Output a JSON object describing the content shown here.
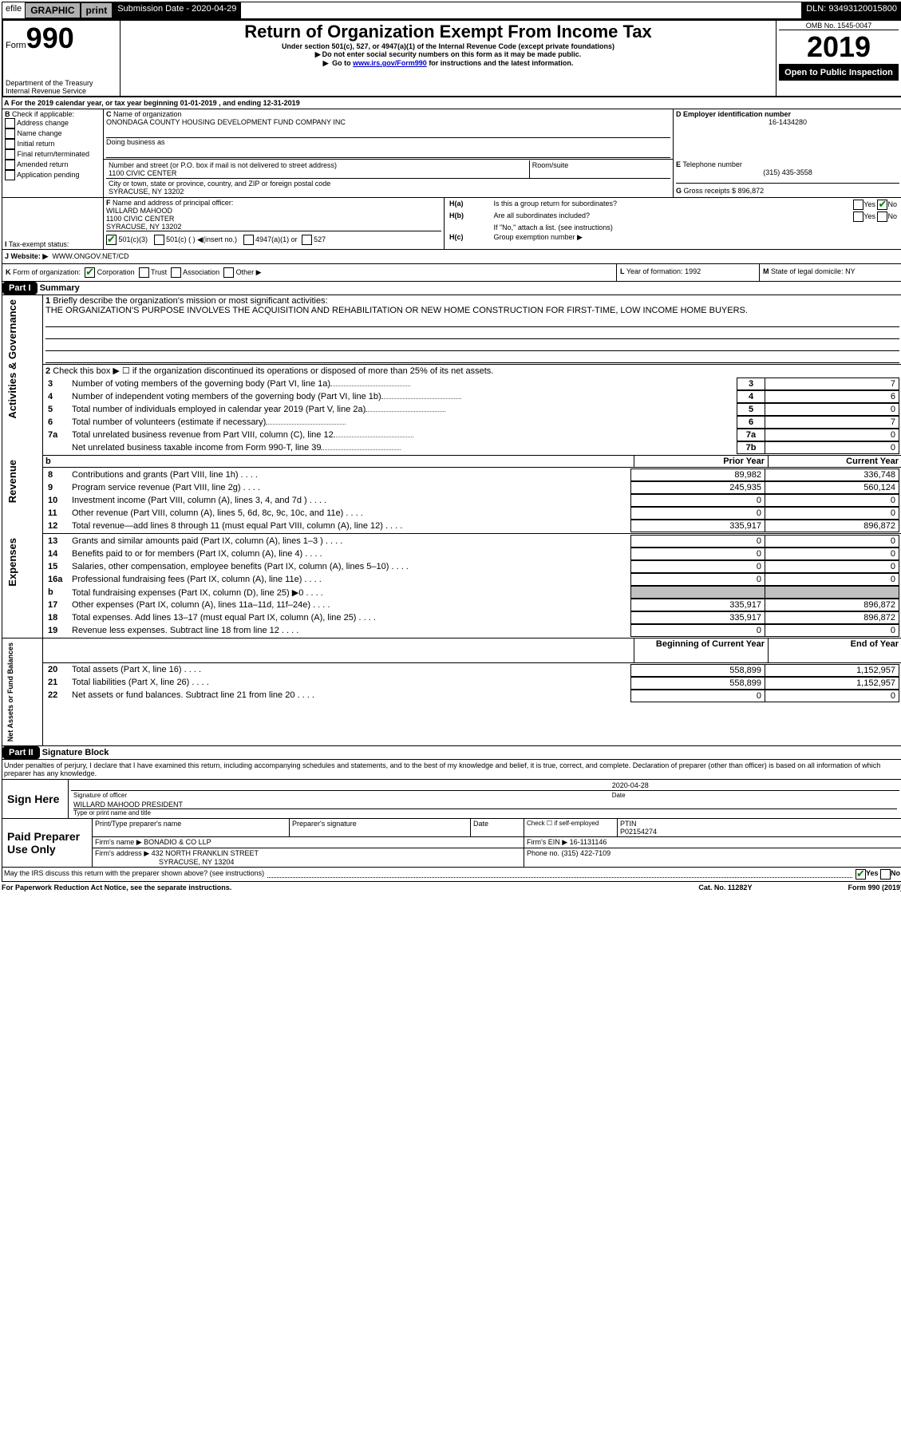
{
  "efile": {
    "prefix": "efile",
    "graphic": "GRAPHIC",
    "print": "print",
    "subdate_label": "Submission Date - ",
    "subdate": "2020-04-29",
    "dln_label": "DLN: ",
    "dln": "93493120015800"
  },
  "header": {
    "form_word": "Form",
    "form_num": "990",
    "title": "Return of Organization Exempt From Income Tax",
    "subtitle": "Under section 501(c), 527, or 4947(a)(1) of the Internal Revenue Code (except private foundations)",
    "warn1": "Do not enter social security numbers on this form as it may be made public.",
    "warn2_pre": "Go to ",
    "warn2_link": "www.irs.gov/Form990",
    "warn2_post": " for instructions and the latest information.",
    "omb_label": "OMB No. 1545-0047",
    "year": "2019",
    "open": "Open to Public Inspection",
    "dept1": "Department of the Treasury",
    "dept2": "Internal Revenue Service"
  },
  "A": {
    "text": "For the 2019 calendar year, or tax year beginning ",
    "begin": "01-01-2019",
    "mid": " , and ending ",
    "end": "12-31-2019"
  },
  "B": {
    "label": "Check if applicable:",
    "opts": [
      "Address change",
      "Name change",
      "Initial return",
      "Final return/terminated",
      "Amended return",
      "Application pending"
    ]
  },
  "C": {
    "name_label": "Name of organization",
    "name": "ONONDAGA COUNTY HOUSING DEVELOPMENT FUND COMPANY INC",
    "dba_label": "Doing business as",
    "addr_label": "Number and street (or P.O. box if mail is not delivered to street address)",
    "addr": "1100 CIVIC CENTER",
    "room_label": "Room/suite",
    "city_label": "City or town, state or province, country, and ZIP or foreign postal code",
    "city": "SYRACUSE, NY  13202"
  },
  "D": {
    "label": "Employer identification number",
    "val": "16-1434280"
  },
  "E": {
    "label": "Telephone number",
    "val": "(315) 435-3558"
  },
  "G": {
    "label": "Gross receipts $ ",
    "val": "896,872"
  },
  "F": {
    "label": "Name and address of principal officer:",
    "line1": "WILLARD MAHOOD",
    "line2": "1100 CIVIC CENTER",
    "line3": "SYRACUSE, NY  13202"
  },
  "H": {
    "a": "Is this a group return for subordinates?",
    "b": "Are all subordinates included?",
    "bnote": "If \"No,\" attach a list. (see instructions)",
    "c": "Group exemption number ▶",
    "yes": "Yes",
    "no": "No"
  },
  "I": {
    "label": "Tax-exempt status:",
    "o1": "501(c)(3)",
    "o2": "501(c) (   ) ◀(insert no.)",
    "o3": "4947(a)(1) or",
    "o4": "527"
  },
  "J": {
    "label": "Website: ▶",
    "val": "WWW.ONGOV.NET/CD"
  },
  "K": {
    "label": "Form of organization:",
    "opts": [
      "Corporation",
      "Trust",
      "Association",
      "Other ▶"
    ]
  },
  "L": {
    "label": "Year of formation: ",
    "val": "1992"
  },
  "M": {
    "label": "State of legal domicile: ",
    "val": "NY"
  },
  "partI": {
    "num": "Part I",
    "title": "Summary",
    "q1": "Briefly describe the organization's mission or most significant activities:",
    "mission": "THE ORGANIZATION'S PURPOSE INVOLVES THE ACQUISITION AND REHABILITATION OR NEW HOME CONSTRUCTION FOR FIRST-TIME, LOW INCOME HOME BUYERS.",
    "q2": "Check this box ▶ ☐  if the organization discontinued its operations or disposed of more than 25% of its net assets.",
    "rows_gov": [
      {
        "n": "3",
        "t": "Number of voting members of the governing body (Part VI, line 1a)",
        "box": "3",
        "v": "7"
      },
      {
        "n": "4",
        "t": "Number of independent voting members of the governing body (Part VI, line 1b)",
        "box": "4",
        "v": "6"
      },
      {
        "n": "5",
        "t": "Total number of individuals employed in calendar year 2019 (Part V, line 2a)",
        "box": "5",
        "v": "0"
      },
      {
        "n": "6",
        "t": "Total number of volunteers (estimate if necessary)",
        "box": "6",
        "v": "7"
      },
      {
        "n": "7a",
        "t": "Total unrelated business revenue from Part VIII, column (C), line 12",
        "box": "7a",
        "v": "0"
      },
      {
        "n": "",
        "t": "Net unrelated business taxable income from Form 990-T, line 39",
        "box": "7b",
        "v": "0"
      }
    ],
    "col_prior": "Prior Year",
    "col_curr": "Current Year",
    "rows_rev": [
      {
        "n": "8",
        "t": "Contributions and grants (Part VIII, line 1h)",
        "p": "89,982",
        "c": "336,748"
      },
      {
        "n": "9",
        "t": "Program service revenue (Part VIII, line 2g)",
        "p": "245,935",
        "c": "560,124"
      },
      {
        "n": "10",
        "t": "Investment income (Part VIII, column (A), lines 3, 4, and 7d )",
        "p": "0",
        "c": "0"
      },
      {
        "n": "11",
        "t": "Other revenue (Part VIII, column (A), lines 5, 6d, 8c, 9c, 10c, and 11e)",
        "p": "0",
        "c": "0"
      },
      {
        "n": "12",
        "t": "Total revenue—add lines 8 through 11 (must equal Part VIII, column (A), line 12)",
        "p": "335,917",
        "c": "896,872"
      }
    ],
    "rows_exp": [
      {
        "n": "13",
        "t": "Grants and similar amounts paid (Part IX, column (A), lines 1–3 )",
        "p": "0",
        "c": "0"
      },
      {
        "n": "14",
        "t": "Benefits paid to or for members (Part IX, column (A), line 4)",
        "p": "0",
        "c": "0"
      },
      {
        "n": "15",
        "t": "Salaries, other compensation, employee benefits (Part IX, column (A), lines 5–10)",
        "p": "0",
        "c": "0"
      },
      {
        "n": "16a",
        "t": "Professional fundraising fees (Part IX, column (A), line 11e)",
        "p": "0",
        "c": "0"
      },
      {
        "n": "b",
        "t": "Total fundraising expenses (Part IX, column (D), line 25) ▶0",
        "p": "",
        "c": "",
        "shade": true
      },
      {
        "n": "17",
        "t": "Other expenses (Part IX, column (A), lines 11a–11d, 11f–24e)",
        "p": "335,917",
        "c": "896,872"
      },
      {
        "n": "18",
        "t": "Total expenses. Add lines 13–17 (must equal Part IX, column (A), line 25)",
        "p": "335,917",
        "c": "896,872"
      },
      {
        "n": "19",
        "t": "Revenue less expenses. Subtract line 18 from line 12",
        "p": "0",
        "c": "0"
      }
    ],
    "col_boy": "Beginning of Current Year",
    "col_eoy": "End of Year",
    "rows_net": [
      {
        "n": "20",
        "t": "Total assets (Part X, line 16)",
        "p": "558,899",
        "c": "1,152,957"
      },
      {
        "n": "21",
        "t": "Total liabilities (Part X, line 26)",
        "p": "558,899",
        "c": "1,152,957"
      },
      {
        "n": "22",
        "t": "Net assets or fund balances. Subtract line 21 from line 20",
        "p": "0",
        "c": "0"
      }
    ],
    "vlabels": {
      "gov": "Activities & Governance",
      "rev": "Revenue",
      "exp": "Expenses",
      "net": "Net Assets or Fund Balances"
    }
  },
  "partII": {
    "num": "Part II",
    "title": "Signature Block",
    "decl": "Under penalties of perjury, I declare that I have examined this return, including accompanying schedules and statements, and to the best of my knowledge and belief, it is true, correct, and complete. Declaration of preparer (other than officer) is based on all information of which preparer has any knowledge.",
    "sign_here": "Sign Here",
    "sig_officer": "Signature of officer",
    "date_label": "Date",
    "date": "2020-04-28",
    "name_title_label": "Type or print name and title",
    "name_title": "WILLARD MAHOOD  PRESIDENT",
    "paid": "Paid Preparer Use Only",
    "prep_name_label": "Print/Type preparer's name",
    "prep_sig_label": "Preparer's signature",
    "prep_date_label": "Date",
    "check_self": "Check ☐ if self-employed",
    "ptin_label": "PTIN",
    "ptin": "P02154274",
    "firm_name_label": "Firm's name    ▶ ",
    "firm_name": "BONADIO & CO LLP",
    "firm_ein_label": "Firm's EIN ▶ ",
    "firm_ein": "16-1131146",
    "firm_addr_label": "Firm's address ▶ ",
    "firm_addr1": "432 NORTH FRANKLIN STREET",
    "firm_addr2": "SYRACUSE, NY  13204",
    "phone_label": "Phone no. ",
    "phone": "(315) 422-7109",
    "discuss": "May the IRS discuss this return with the preparer shown above? (see instructions)"
  },
  "footer": {
    "pra": "For Paperwork Reduction Act Notice, see the separate instructions.",
    "cat": "Cat. No. 11282Y",
    "form": "Form 990 (2019)"
  }
}
